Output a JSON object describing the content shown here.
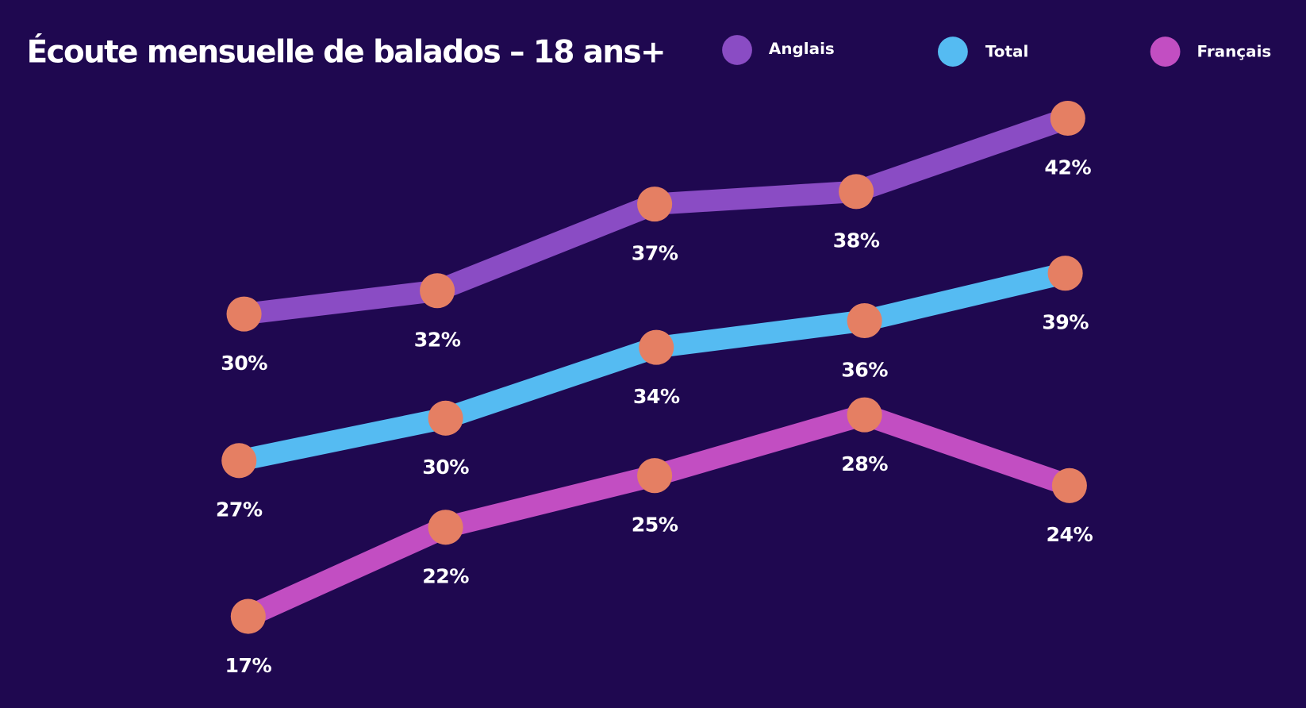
{
  "chart_data": {
    "type": "line",
    "title": "Écoute mensuelle de balados – 18 ans+",
    "legend_position": "top-right",
    "grid": false,
    "axes_visible": false,
    "marker_color": "#e57f63",
    "background": "#1f0850",
    "series": [
      {
        "name": "Anglais",
        "color": "#8a4cc4",
        "values": [
          30,
          32,
          37,
          38,
          42
        ],
        "labels": [
          "30%",
          "32%",
          "37%",
          "38%",
          "42%"
        ]
      },
      {
        "name": "Total",
        "color": "#55bbf2",
        "values": [
          27,
          30,
          34,
          36,
          39
        ],
        "labels": [
          "27%",
          "30%",
          "34%",
          "36%",
          "39%"
        ]
      },
      {
        "name": "Français",
        "color": "#c24ec2",
        "values": [
          17,
          22,
          25,
          28,
          24
        ],
        "labels": [
          "17%",
          "22%",
          "25%",
          "28%",
          "24%"
        ]
      }
    ]
  }
}
